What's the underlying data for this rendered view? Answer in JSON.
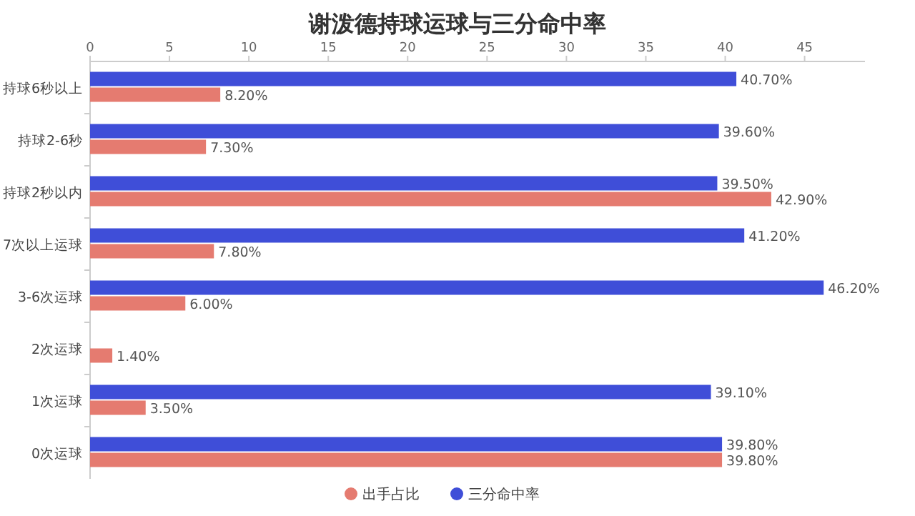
{
  "chart_data": {
    "type": "bar",
    "orientation": "horizontal",
    "title": "谢泼德持球运球与三分命中率",
    "categories": [
      "持球6秒以上",
      "持球2-6秒",
      "持球2秒以内",
      "7次以上运球",
      "3-6次运球",
      "2次运球",
      "1次运球",
      "0次运球"
    ],
    "series": [
      {
        "name": "出手占比",
        "color": "#e57b70",
        "values": [
          8.2,
          7.3,
          42.9,
          7.8,
          6.0,
          1.4,
          3.5,
          39.8
        ],
        "value_labels": [
          "8.20%",
          "7.30%",
          "42.90%",
          "7.80%",
          "6.00%",
          "1.40%",
          "3.50%",
          "39.80%"
        ]
      },
      {
        "name": "三分命中率",
        "color": "#3f4ed8",
        "values": [
          40.7,
          39.6,
          39.5,
          41.2,
          46.2,
          null,
          39.1,
          39.8
        ],
        "value_labels": [
          "40.70%",
          "39.60%",
          "39.50%",
          "41.20%",
          "46.20%",
          null,
          "39.10%",
          "39.80%"
        ]
      }
    ],
    "xlim": [
      0,
      48.8
    ],
    "xticks": [
      0,
      5,
      10,
      15,
      20,
      25,
      30,
      35,
      40,
      45
    ],
    "legend": "bottom"
  }
}
